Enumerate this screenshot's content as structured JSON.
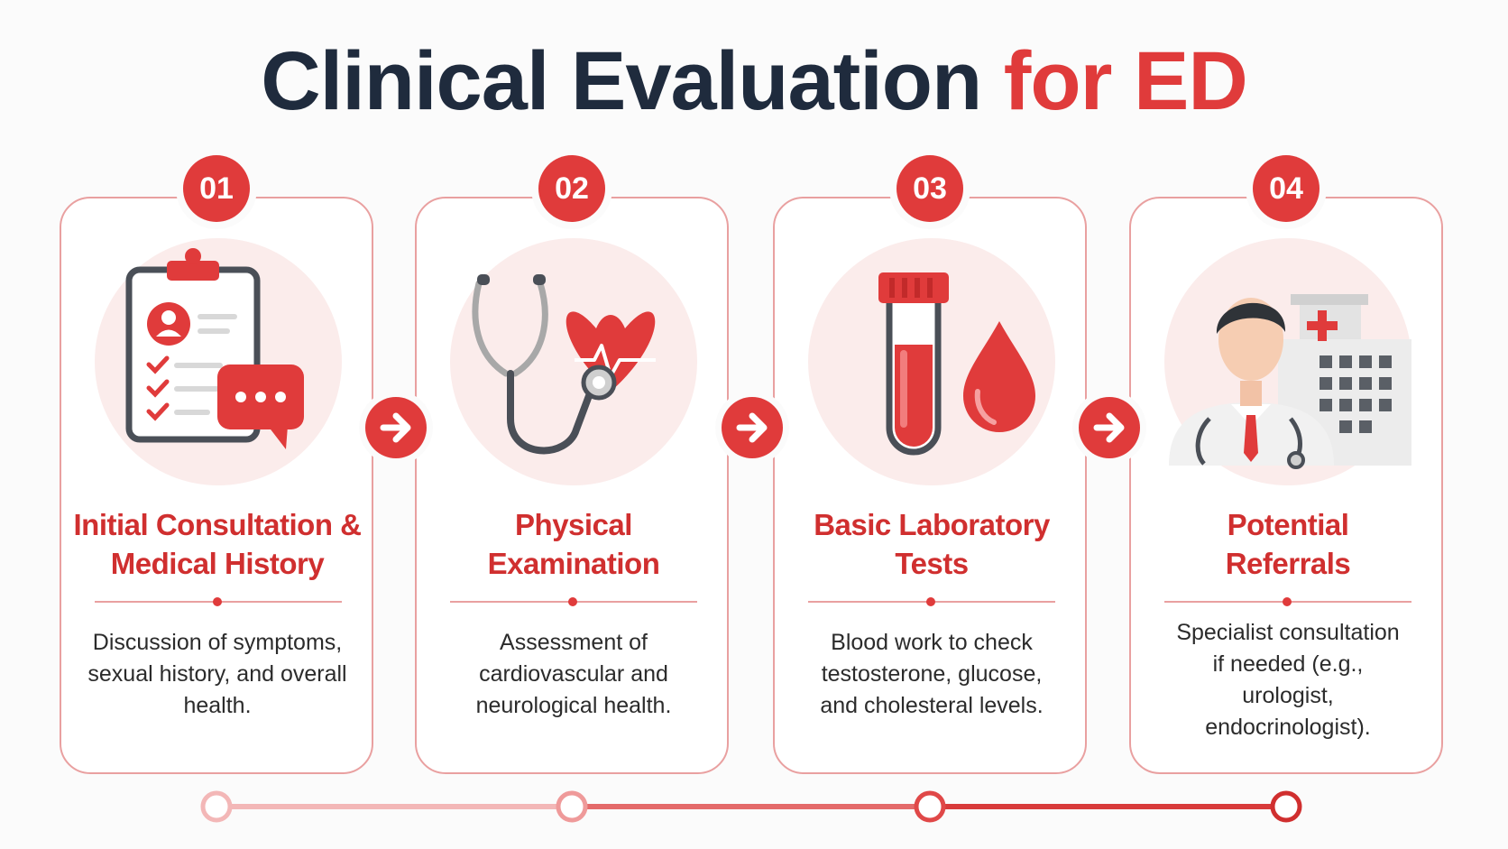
{
  "title": {
    "main": "Clinical Evaluation",
    "accent": "for ED"
  },
  "steps": [
    {
      "number": "01",
      "title": "Initial Consultation & Medical History",
      "description": "Discussion of symptoms, sexual history, and overall health.",
      "icon": "clipboard-chat-icon"
    },
    {
      "number": "02",
      "title": "Physical Examination",
      "description": "Assessment of cardiovascular and neurological health.",
      "icon": "stethoscope-heart-icon"
    },
    {
      "number": "03",
      "title": "Basic Laboratory Tests",
      "description": "Blood work to check testosterone, glucose, and cholesteral levels.",
      "icon": "test-tube-blood-drop-icon"
    },
    {
      "number": "04",
      "title": "Potential Referrals",
      "description": "Specialist consultation if needed (e.g., urologist, endocrinologist).",
      "icon": "doctor-hospital-icon"
    }
  ],
  "connector_icons": [
    "arrow-right-icon",
    "arrow-right-icon",
    "arrow-right-icon"
  ],
  "colors": {
    "accent": "#e03b3b",
    "title_dark": "#1f2b3d",
    "card_border": "#e9a0a0",
    "icon_bg": "#fbeceb",
    "text": "#2b2b2b"
  }
}
